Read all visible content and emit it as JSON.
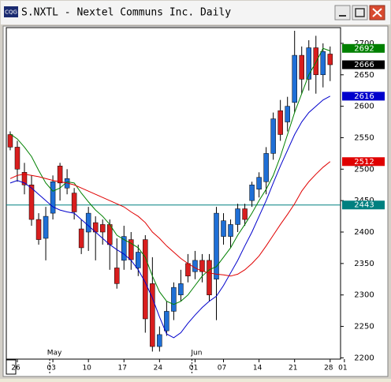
{
  "window": {
    "title": "S.NXTL - Nextel Communs Inc. Daily"
  },
  "chart_data": {
    "type": "candlestick",
    "up_color": "#1f6fd6",
    "down_color": "#d81e1e",
    "xlim": [
      -0.55,
      47.35
    ],
    "xticks": [
      {
        "value": 1,
        "label": "26"
      },
      {
        "value": 6,
        "label": "03"
      },
      {
        "value": 11,
        "label": "10"
      },
      {
        "value": 16,
        "label": "17"
      },
      {
        "value": 21,
        "label": "24"
      },
      {
        "value": 26,
        "label": "01"
      },
      {
        "value": 30,
        "label": "07"
      },
      {
        "value": 35,
        "label": "14"
      },
      {
        "value": 40,
        "label": "21"
      },
      {
        "value": 45,
        "label": "28"
      },
      {
        "value": 47,
        "label": "01"
      }
    ],
    "month_ticks": [
      {
        "value": 6,
        "label": "May"
      },
      {
        "value": 26,
        "label": "Jun"
      }
    ],
    "ylim": [
      2198,
      2725
    ],
    "yticks": [
      2200,
      2250,
      2300,
      2350,
      2400,
      2450,
      2500,
      2550,
      2600,
      2650,
      2700
    ],
    "open": [
      2555,
      2535,
      2495,
      2475,
      2420,
      2390,
      2430,
      2505,
      2470,
      2462,
      2405,
      2400,
      2415,
      2412,
      2412,
      2343,
      2355,
      2388,
      2343,
      2388,
      2318,
      2218,
      2243,
      2274,
      2300,
      2350,
      2337,
      2355,
      2355,
      2325,
      2393,
      2393,
      2412,
      2437,
      2450,
      2468,
      2480,
      2525,
      2593,
      2575,
      2606,
      2681,
      2643,
      2693,
      2650,
      2683
    ],
    "high": [
      2560,
      2545,
      2510,
      2490,
      2430,
      2440,
      2490,
      2510,
      2500,
      2470,
      2420,
      2440,
      2425,
      2420,
      2420,
      2390,
      2410,
      2400,
      2380,
      2395,
      2360,
      2250,
      2290,
      2320,
      2340,
      2365,
      2370,
      2365,
      2365,
      2440,
      2430,
      2420,
      2445,
      2445,
      2480,
      2495,
      2535,
      2590,
      2610,
      2615,
      2720,
      2695,
      2705,
      2712,
      2700,
      2695
    ],
    "low": [
      2530,
      2480,
      2460,
      2410,
      2380,
      2355,
      2420,
      2450,
      2460,
      2420,
      2365,
      2370,
      2355,
      2380,
      2340,
      2310,
      2340,
      2340,
      2330,
      2240,
      2210,
      2210,
      2235,
      2260,
      2290,
      2320,
      2325,
      2320,
      2290,
      2260,
      2380,
      2375,
      2400,
      2410,
      2440,
      2455,
      2460,
      2515,
      2545,
      2560,
      2590,
      2620,
      2625,
      2620,
      2630,
      2640
    ],
    "close": [
      2535,
      2500,
      2475,
      2420,
      2388,
      2425,
      2480,
      2478,
      2485,
      2432,
      2375,
      2430,
      2400,
      2400,
      2380,
      2318,
      2393,
      2356,
      2368,
      2262,
      2218,
      2237,
      2274,
      2312,
      2318,
      2330,
      2355,
      2337,
      2300,
      2430,
      2418,
      2412,
      2437,
      2420,
      2475,
      2487,
      2525,
      2580,
      2555,
      2600,
      2681,
      2643,
      2693,
      2650,
      2687,
      2666
    ],
    "close_label_color": "#000000",
    "series": [
      {
        "color": "#008000",
        "values": [
          2556,
          2548,
          2535,
          2520,
          2498,
          2478,
          2465,
          2470,
          2480,
          2478,
          2462,
          2448,
          2435,
          2425,
          2412,
          2395,
          2388,
          2382,
          2375,
          2360,
          2330,
          2305,
          2290,
          2285,
          2290,
          2300,
          2315,
          2330,
          2340,
          2345,
          2360,
          2375,
          2395,
          2412,
          2430,
          2450,
          2468,
          2490,
          2520,
          2555,
          2590,
          2620,
          2650,
          2670,
          2692,
          2688
        ]
      },
      {
        "color": "#0000cc",
        "values": [
          2478,
          2482,
          2478,
          2470,
          2460,
          2450,
          2440,
          2435,
          2432,
          2430,
          2420,
          2410,
          2400,
          2390,
          2380,
          2372,
          2365,
          2355,
          2340,
          2320,
          2295,
          2265,
          2238,
          2232,
          2240,
          2255,
          2268,
          2280,
          2290,
          2298,
          2315,
          2335,
          2355,
          2378,
          2400,
          2425,
          2450,
          2478,
          2505,
          2530,
          2555,
          2575,
          2590,
          2600,
          2610,
          2616
        ]
      },
      {
        "color": "#e00000",
        "values": [
          2485,
          2490,
          2492,
          2490,
          2488,
          2485,
          2482,
          2480,
          2478,
          2475,
          2470,
          2465,
          2460,
          2455,
          2450,
          2445,
          2440,
          2432,
          2425,
          2415,
          2400,
          2390,
          2378,
          2368,
          2358,
          2350,
          2343,
          2338,
          2335,
          2333,
          2332,
          2330,
          2333,
          2340,
          2350,
          2362,
          2378,
          2395,
          2412,
          2428,
          2445,
          2465,
          2480,
          2492,
          2503,
          2512
        ]
      }
    ],
    "hline": {
      "value": 2443,
      "color": "#008080"
    }
  }
}
